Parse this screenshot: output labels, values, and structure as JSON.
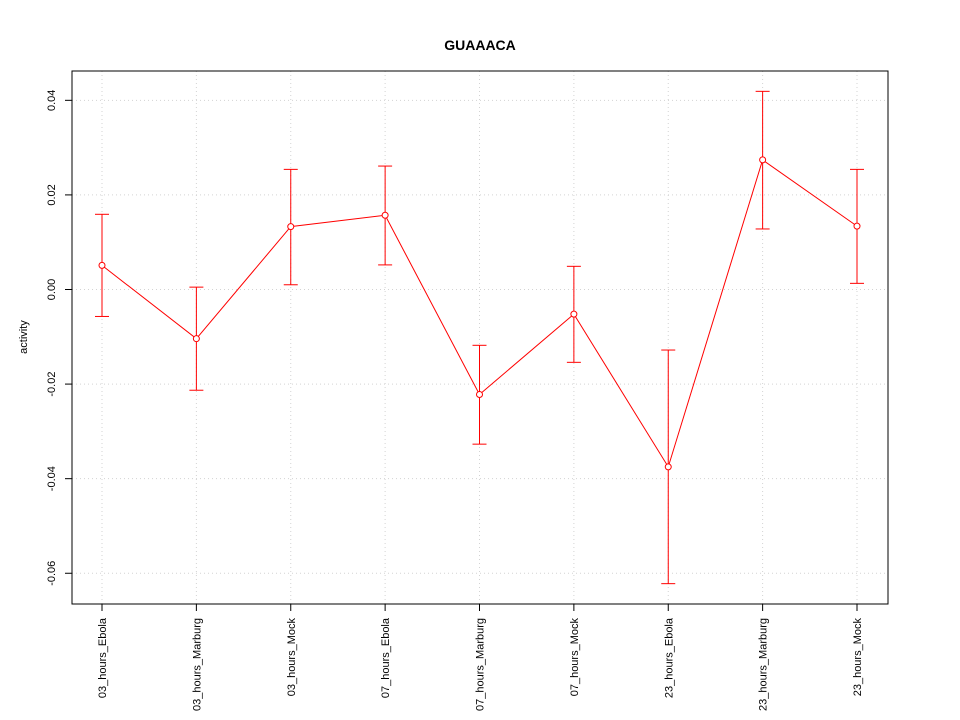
{
  "chart_data": {
    "type": "line",
    "title": "GUAAACA",
    "ylabel": "activity",
    "xlabel": "",
    "categories": [
      "03_hours_Ebola",
      "03_hours_Marburg",
      "03_hours_Mock",
      "07_hours_Ebola",
      "07_hours_Marburg",
      "07_hours_Mock",
      "23_hours_Ebola",
      "23_hours_Marburg",
      "23_hours_Mock"
    ],
    "values": [
      0.0051,
      -0.0104,
      0.0133,
      0.0157,
      -0.0222,
      -0.0052,
      -0.0375,
      0.0274,
      0.0134
    ],
    "upper": [
      0.0159,
      0.0005,
      0.0254,
      0.0261,
      -0.0118,
      0.0049,
      -0.0128,
      0.0419,
      0.0254
    ],
    "lower": [
      -0.0057,
      -0.0213,
      0.001,
      0.0052,
      -0.0327,
      -0.0154,
      -0.0622,
      0.0128,
      0.0013
    ],
    "yticks": [
      -0.06,
      -0.04,
      -0.02,
      0.0,
      0.02,
      0.04
    ],
    "ytick_labels": [
      "-0.06",
      "-0.04",
      "-0.02",
      "0.00",
      "0.02",
      "0.04"
    ],
    "ylim": [
      -0.0665,
      0.0462
    ],
    "grid": true,
    "series_color": "#ff0000",
    "grid_color": "#d3d3d3"
  }
}
